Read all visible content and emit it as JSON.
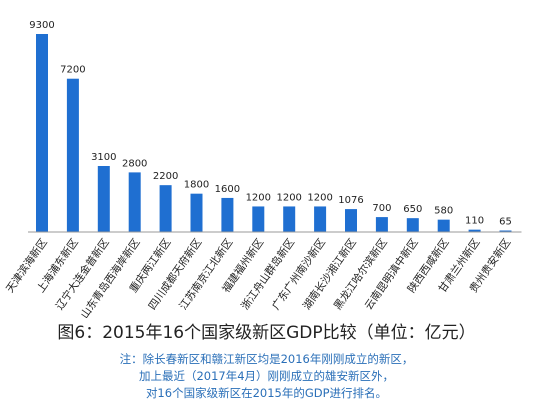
{
  "chart_data": {
    "type": "bar",
    "title": "",
    "xlabel": "",
    "ylabel": "",
    "ylim": [
      0,
      9300
    ],
    "grid": false,
    "bar_color": "#1f6fd1",
    "categories": [
      "天津滨海新区",
      "上海浦东新区",
      "辽宁大连金普新区",
      "山东青岛西海岸新区",
      "重庆两江新区",
      "四川成都天府新区",
      "江苏南京江北新区",
      "福建福州新区",
      "浙江舟山群岛新区",
      "广东广州南沙新区",
      "湖南长沙湘江新区",
      "黑龙江哈尔滨新区",
      "云南昆明滇中新区",
      "陕西西咸新区",
      "甘肃兰州新区",
      "贵州贵安新区"
    ],
    "values": [
      9300,
      7200,
      3100,
      2800,
      2200,
      1800,
      1600,
      1200,
      1200,
      1200,
      1076,
      700,
      650,
      580,
      110,
      65
    ],
    "value_labels": [
      "9300",
      "7200",
      "3100",
      "2800",
      "2200",
      "1800",
      "1600",
      "1200",
      "1200",
      "1200",
      "1076",
      "700",
      "650",
      "580",
      "110",
      "65"
    ]
  },
  "caption": "图6：2015年16个国家级新区GDP比较（单位：亿元）",
  "notes": [
    "注：除长春新区和赣江新区均是2016年刚刚成立的新区，",
    "加上最近（2017年4月）刚刚成立的雄安新区外，",
    "对16个国家级新区在2015年的GDP进行排名。"
  ]
}
